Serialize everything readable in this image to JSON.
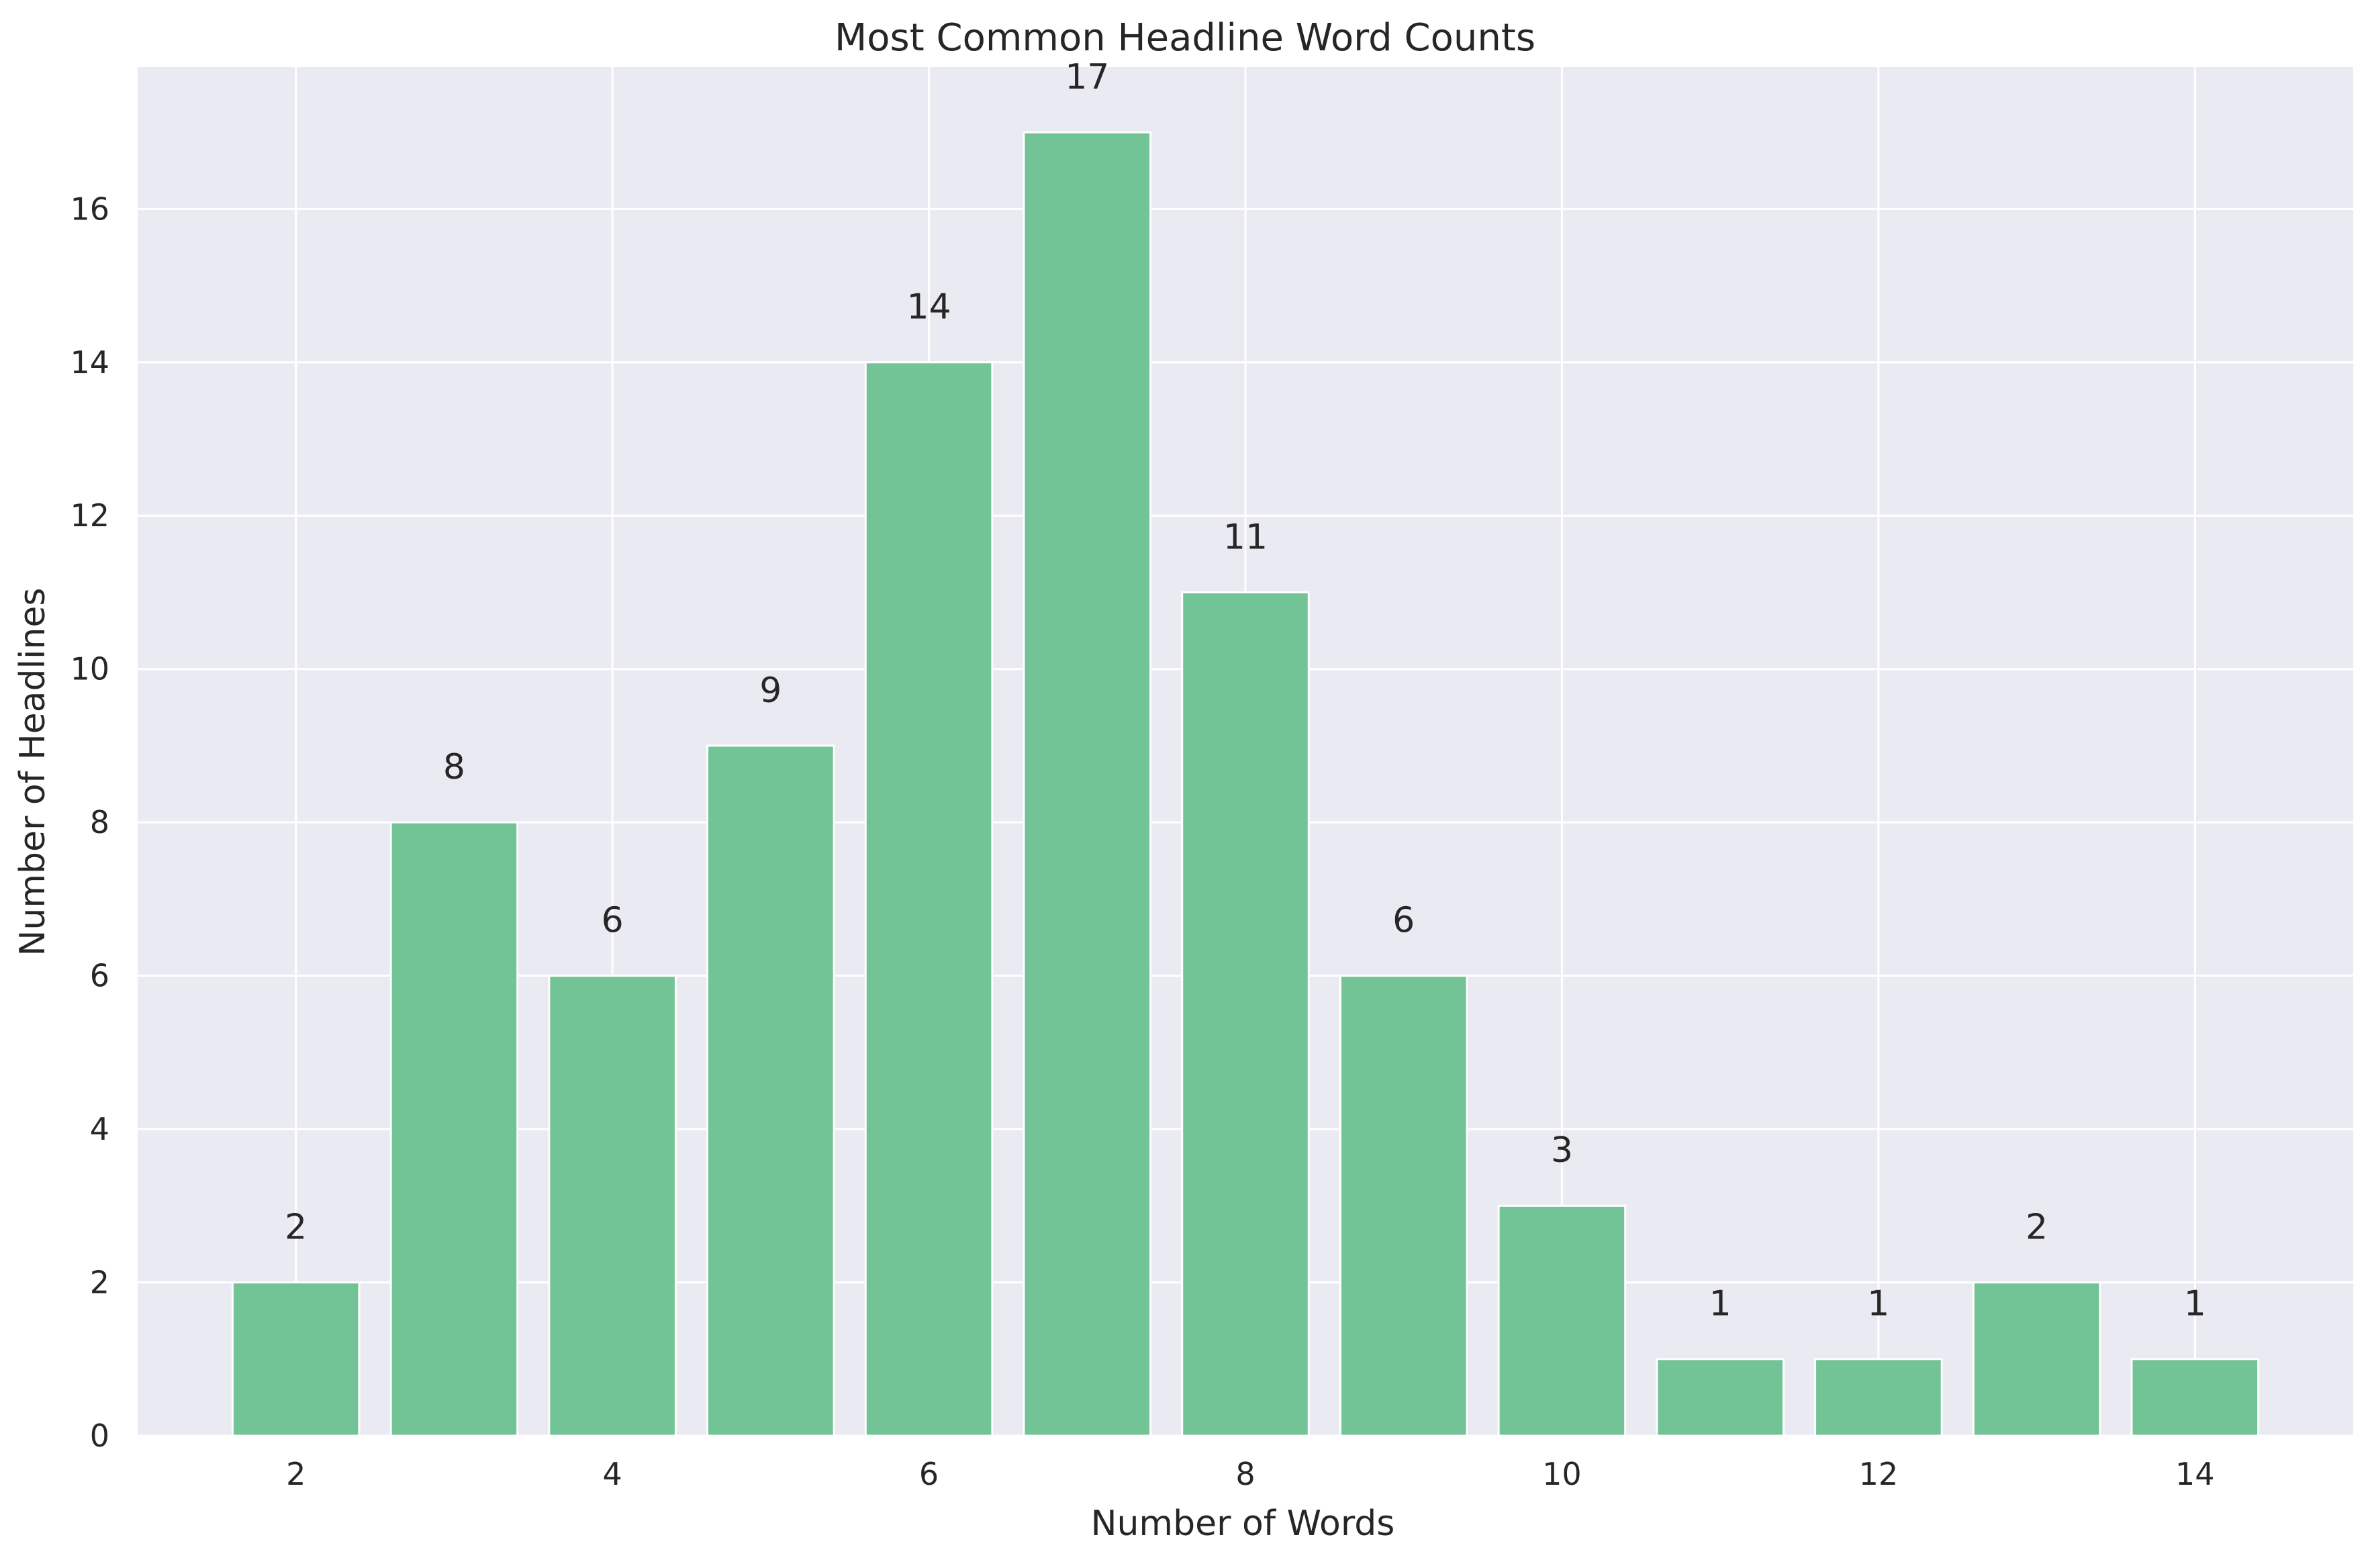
{
  "chart_data": {
    "type": "bar",
    "title": "Most Common Headline Word Counts",
    "xlabel": "Number of Words",
    "ylabel": "Number of Headlines",
    "x": [
      2,
      3,
      4,
      5,
      6,
      7,
      8,
      9,
      10,
      11,
      12,
      13,
      14
    ],
    "values": [
      2,
      8,
      6,
      9,
      14,
      17,
      11,
      6,
      3,
      1,
      1,
      2,
      1
    ],
    "data_labels": [
      "2",
      "8",
      "6",
      "9",
      "14",
      "17",
      "11",
      "6",
      "3",
      "1",
      "1",
      "2",
      "1"
    ],
    "xlim": [
      1,
      15
    ],
    "ylim": [
      0,
      17.85
    ],
    "xticks": [
      2,
      4,
      6,
      8,
      10,
      12,
      14
    ],
    "yticks": [
      0,
      2,
      4,
      6,
      8,
      10,
      12,
      14,
      16
    ],
    "bar_width": 0.8,
    "grid": true,
    "colors": {
      "bar": "#72c395",
      "background": "#eaeaf2",
      "grid": "#ffffff",
      "text": "#262626"
    }
  }
}
